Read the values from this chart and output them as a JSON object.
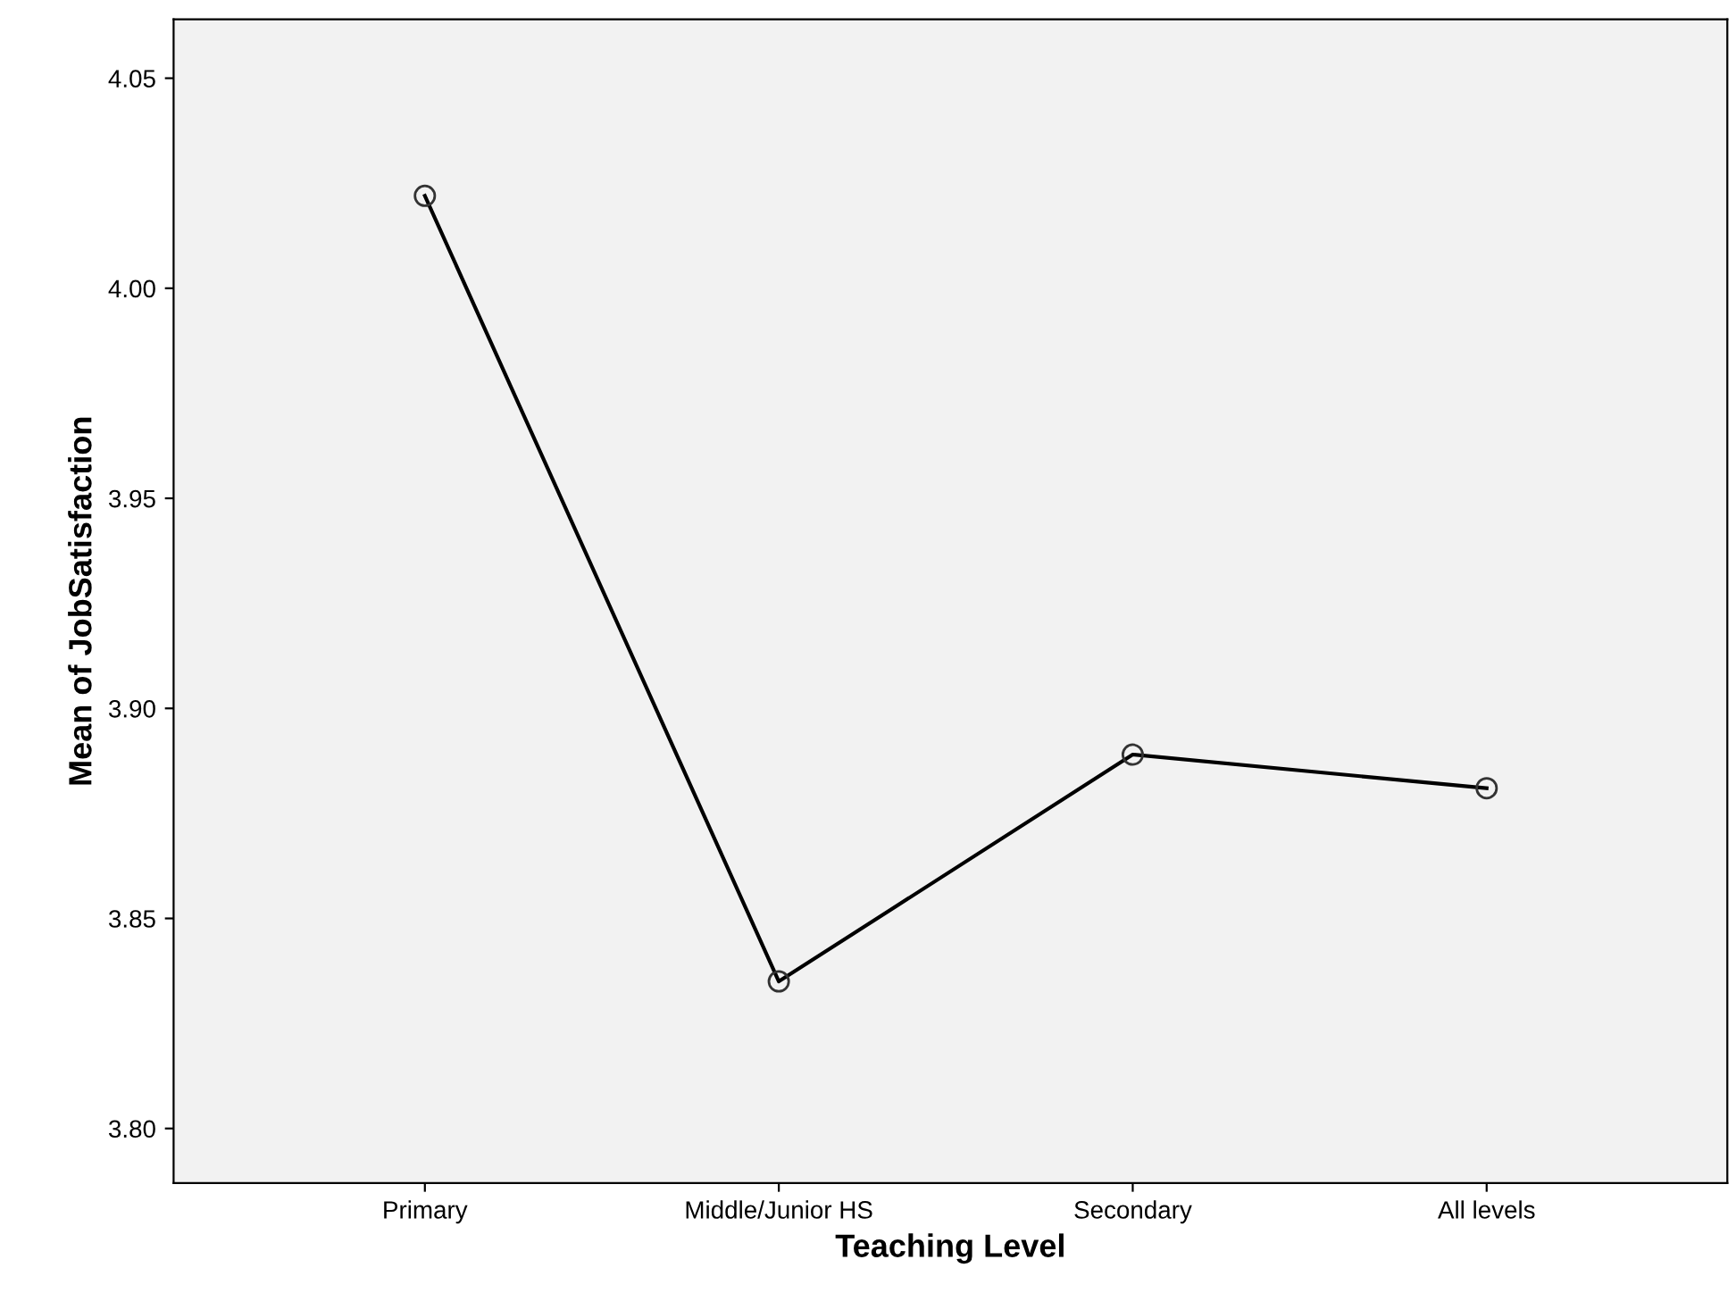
{
  "chart_data": {
    "type": "line",
    "xlabel": "Teaching Level",
    "ylabel": "Mean of JobSatisfaction",
    "categories": [
      "Primary",
      "Middle/Junior HS",
      "Secondary",
      "All levels"
    ],
    "series": [
      {
        "color": "#000000",
        "values": [
          4.022,
          3.835,
          3.889,
          3.881
        ]
      }
    ],
    "ylim": [
      3.787,
      4.064
    ],
    "yticks": [
      {
        "value": 3.8,
        "label": "3.80"
      },
      {
        "value": 3.85,
        "label": "3.85"
      },
      {
        "value": 3.9,
        "label": "3.90"
      },
      {
        "value": 3.95,
        "label": "3.95"
      },
      {
        "value": 4.0,
        "label": "4.00"
      },
      {
        "value": 4.05,
        "label": "4.05"
      }
    ],
    "grid": false,
    "marker": "circle",
    "line_style": "solid"
  }
}
